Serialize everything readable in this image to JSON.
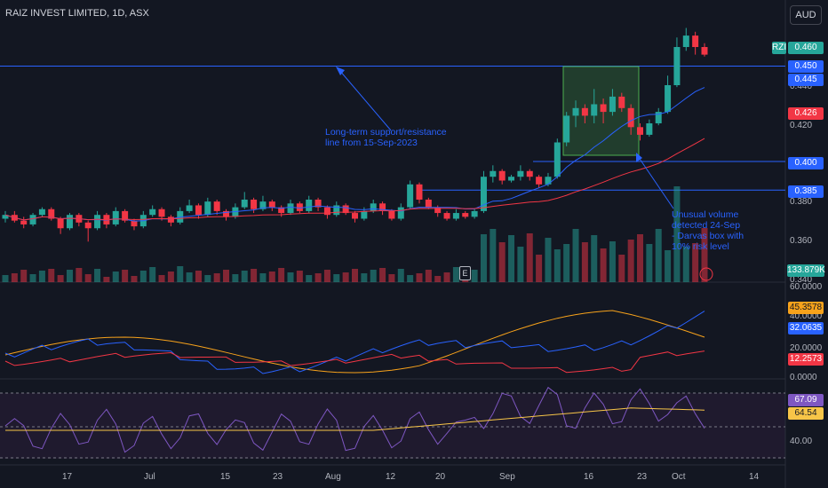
{
  "header": {
    "title": "RAIZ INVEST LIMITED, 1D, ASX",
    "currency": "AUD"
  },
  "price_axis": {
    "ticks": [
      "0.440",
      "0.420",
      "0.380",
      "0.360",
      "0.340"
    ]
  },
  "macd_axis": {
    "ticks": [
      "60.0000",
      "40.0000",
      "20.0000",
      "0.0000"
    ]
  },
  "rsi_axis": {
    "ticks": [
      "40.00"
    ]
  },
  "time_axis": {
    "labels": [
      "17",
      "Jul",
      "15",
      "23",
      "Aug",
      "12",
      "20",
      "Sep",
      "16",
      "23",
      "Oct",
      "14"
    ]
  },
  "price_tags": [
    {
      "text": "RZI",
      "color": "#26a69a"
    },
    {
      "text": "0.460",
      "color": "#26a69a"
    },
    {
      "text": "0.450",
      "color": "#2962ff"
    },
    {
      "text": "0.445",
      "color": "#2962ff"
    },
    {
      "text": "0.426",
      "color": "#f23645"
    },
    {
      "text": "0.400",
      "color": "#2962ff"
    },
    {
      "text": "0.385",
      "color": "#2962ff"
    },
    {
      "text": "133.879K",
      "color": "#26a69a"
    },
    {
      "text": "45.3578",
      "color": "#f7a21b"
    },
    {
      "text": "32.0635",
      "color": "#2962ff"
    },
    {
      "text": "12.2573",
      "color": "#f23645"
    },
    {
      "text": "67.09",
      "color": "#7e57c2"
    },
    {
      "text": "64.54",
      "color": "#f7c548"
    }
  ],
  "annotations": {
    "support_line": [
      "Long-term support/resistance",
      "line from 15-Sep-2023"
    ],
    "darvas": [
      "Unusual volume",
      "detected 24-Sep",
      "- Darvas box with",
      "10% risk level"
    ]
  },
  "earnings_badge": "E",
  "colors": {
    "up": "#26a69a",
    "down": "#f23645",
    "line": "#2962ff",
    "bg": "#131722"
  },
  "chart_data": {
    "type": "candlestick",
    "horizontal_levels": [
      0.45,
      0.4,
      0.385
    ],
    "candles": [
      [
        0.37,
        0.372,
        0.368,
        0.374
      ],
      [
        0.372,
        0.369,
        0.368,
        0.374
      ],
      [
        0.369,
        0.367,
        0.365,
        0.371
      ],
      [
        0.367,
        0.372,
        0.366,
        0.373
      ],
      [
        0.372,
        0.375,
        0.371,
        0.376
      ],
      [
        0.375,
        0.37,
        0.369,
        0.376
      ],
      [
        0.37,
        0.365,
        0.362,
        0.371
      ],
      [
        0.365,
        0.372,
        0.364,
        0.373
      ],
      [
        0.372,
        0.368,
        0.366,
        0.373
      ],
      [
        0.368,
        0.365,
        0.358,
        0.369
      ],
      [
        0.365,
        0.372,
        0.364,
        0.374
      ],
      [
        0.372,
        0.367,
        0.365,
        0.373
      ],
      [
        0.367,
        0.374,
        0.366,
        0.376
      ],
      [
        0.374,
        0.369,
        0.368,
        0.375
      ],
      [
        0.369,
        0.366,
        0.364,
        0.37
      ],
      [
        0.366,
        0.372,
        0.365,
        0.374
      ],
      [
        0.372,
        0.375,
        0.371,
        0.377
      ],
      [
        0.375,
        0.371,
        0.369,
        0.376
      ],
      [
        0.371,
        0.368,
        0.366,
        0.372
      ],
      [
        0.368,
        0.374,
        0.367,
        0.376
      ],
      [
        0.374,
        0.377,
        0.373,
        0.38
      ],
      [
        0.377,
        0.372,
        0.37,
        0.378
      ],
      [
        0.372,
        0.379,
        0.371,
        0.381
      ],
      [
        0.379,
        0.374,
        0.372,
        0.38
      ],
      [
        0.374,
        0.371,
        0.369,
        0.375
      ],
      [
        0.371,
        0.376,
        0.37,
        0.378
      ],
      [
        0.376,
        0.38,
        0.375,
        0.384
      ],
      [
        0.38,
        0.375,
        0.373,
        0.381
      ],
      [
        0.375,
        0.379,
        0.374,
        0.382
      ],
      [
        0.379,
        0.376,
        0.374,
        0.38
      ],
      [
        0.376,
        0.373,
        0.371,
        0.377
      ],
      [
        0.373,
        0.378,
        0.372,
        0.38
      ],
      [
        0.378,
        0.374,
        0.373,
        0.379
      ],
      [
        0.374,
        0.38,
        0.373,
        0.382
      ],
      [
        0.38,
        0.376,
        0.374,
        0.381
      ],
      [
        0.376,
        0.372,
        0.37,
        0.377
      ],
      [
        0.372,
        0.377,
        0.371,
        0.379
      ],
      [
        0.377,
        0.373,
        0.372,
        0.378
      ],
      [
        0.373,
        0.37,
        0.368,
        0.374
      ],
      [
        0.37,
        0.374,
        0.369,
        0.376
      ],
      [
        0.374,
        0.378,
        0.373,
        0.38
      ],
      [
        0.378,
        0.374,
        0.372,
        0.379
      ],
      [
        0.374,
        0.37,
        0.369,
        0.375
      ],
      [
        0.37,
        0.376,
        0.369,
        0.378
      ],
      [
        0.376,
        0.388,
        0.375,
        0.39
      ],
      [
        0.388,
        0.38,
        0.378,
        0.389
      ],
      [
        0.38,
        0.376,
        0.375,
        0.381
      ],
      [
        0.376,
        0.373,
        0.371,
        0.377
      ],
      [
        0.373,
        0.37,
        0.369,
        0.374
      ],
      [
        0.37,
        0.373,
        0.369,
        0.375
      ],
      [
        0.373,
        0.371,
        0.37,
        0.374
      ],
      [
        0.371,
        0.374,
        0.37,
        0.375
      ],
      [
        0.374,
        0.392,
        0.373,
        0.395
      ],
      [
        0.392,
        0.395,
        0.389,
        0.398
      ],
      [
        0.395,
        0.39,
        0.388,
        0.396
      ],
      [
        0.39,
        0.392,
        0.389,
        0.393
      ],
      [
        0.392,
        0.395,
        0.39,
        0.398
      ],
      [
        0.395,
        0.392,
        0.39,
        0.396
      ],
      [
        0.392,
        0.388,
        0.386,
        0.393
      ],
      [
        0.388,
        0.392,
        0.387,
        0.394
      ],
      [
        0.392,
        0.41,
        0.391,
        0.412
      ],
      [
        0.41,
        0.424,
        0.408,
        0.426
      ],
      [
        0.424,
        0.428,
        0.418,
        0.432
      ],
      [
        0.428,
        0.424,
        0.42,
        0.43
      ],
      [
        0.424,
        0.43,
        0.42,
        0.438
      ],
      [
        0.43,
        0.426,
        0.42,
        0.433
      ],
      [
        0.426,
        0.434,
        0.424,
        0.438
      ],
      [
        0.434,
        0.428,
        0.426,
        0.436
      ],
      [
        0.428,
        0.418,
        0.414,
        0.43
      ],
      [
        0.418,
        0.414,
        0.411,
        0.42
      ],
      [
        0.414,
        0.42,
        0.413,
        0.422
      ],
      [
        0.42,
        0.426,
        0.419,
        0.428
      ],
      [
        0.426,
        0.44,
        0.425,
        0.445
      ],
      [
        0.44,
        0.46,
        0.439,
        0.465
      ],
      [
        0.46,
        0.466,
        0.458,
        0.47
      ],
      [
        0.466,
        0.46,
        0.456,
        0.468
      ],
      [
        0.46,
        0.456,
        0.455,
        0.462
      ]
    ],
    "volume": [],
    "ma_fast": [],
    "ma_slow": []
  }
}
